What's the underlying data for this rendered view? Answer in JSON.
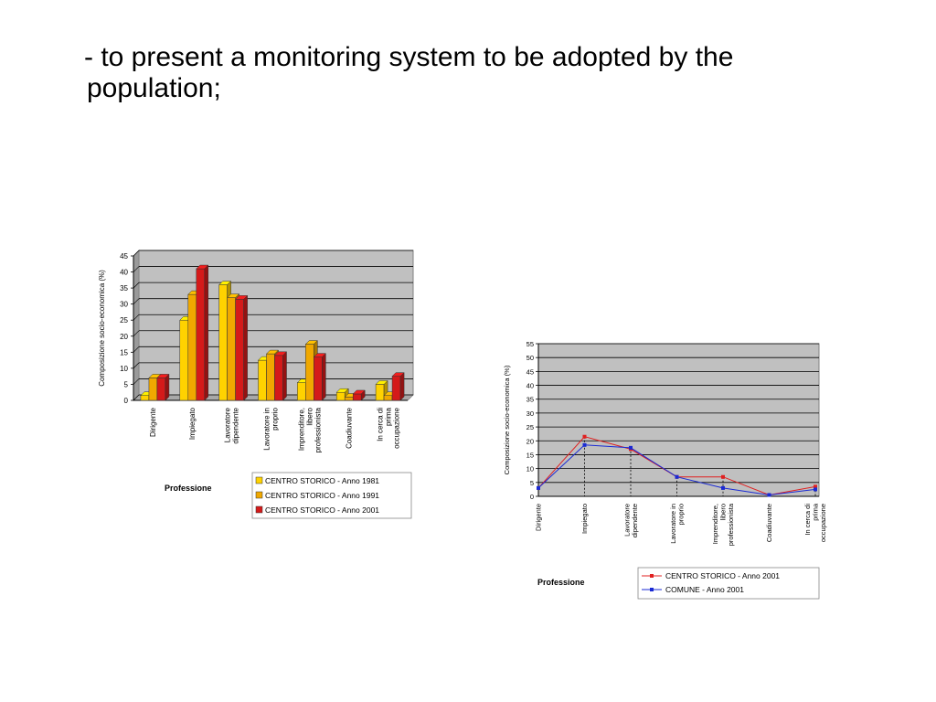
{
  "slide": {
    "line1": "- to present a monitoring system to be adopted by the",
    "line2": "population;"
  },
  "chart_data": [
    {
      "type": "bar",
      "ylabel": "Composizione socio-economica (%)",
      "xlabel": "Professione",
      "ylim": [
        0,
        45
      ],
      "yticks": [
        0,
        5,
        10,
        15,
        20,
        25,
        30,
        35,
        40,
        45
      ],
      "grid": true,
      "legend_position": "bottom-right",
      "categories": [
        "Dirigente",
        "Impiegato",
        "Lavoratore dipendente",
        "Lavoratore in proprio",
        "Imprenditore, libero professionista",
        "Coadiuvante",
        "In cerca di prima occupazione"
      ],
      "series": [
        {
          "name": "CENTRO STORICO - Anno 1981",
          "color": "#ffd200",
          "values": [
            1.5,
            25,
            36,
            12.5,
            5.5,
            2.5,
            5
          ]
        },
        {
          "name": "CENTRO STORICO - Anno 1991",
          "color": "#f0a800",
          "values": [
            7,
            33,
            32,
            14.5,
            17.5,
            1,
            1.5
          ]
        },
        {
          "name": "CENTRO STORICO - Anno 2001",
          "color": "#d41a1a",
          "values": [
            7,
            41,
            31.5,
            14,
            13.5,
            2,
            7.5
          ]
        }
      ]
    },
    {
      "type": "line",
      "ylabel": "Composizione socio-economica (%)",
      "xlabel": "Professione",
      "ylim": [
        0,
        55
      ],
      "yticks": [
        0,
        5,
        10,
        15,
        20,
        25,
        30,
        35,
        40,
        45,
        50,
        55
      ],
      "grid": true,
      "legend_position": "bottom-right",
      "categories": [
        "Dirigente",
        "Impiegato",
        "Lavoratore dipendente",
        "Lavoratore in proprio",
        "Imprenditore, libero professionista",
        "Coadiuvante",
        "In cerca di prima occupazione"
      ],
      "series": [
        {
          "name": "CENTRO STORICO - Anno 2001",
          "color": "#e02020",
          "values": [
            3,
            21.5,
            17,
            7,
            7,
            0.5,
            3.5
          ]
        },
        {
          "name": "COMUNE - Anno 2001",
          "color": "#1a2ad4",
          "values": [
            3,
            18.5,
            17.5,
            7,
            3,
            0.5,
            2.5
          ]
        }
      ]
    }
  ]
}
